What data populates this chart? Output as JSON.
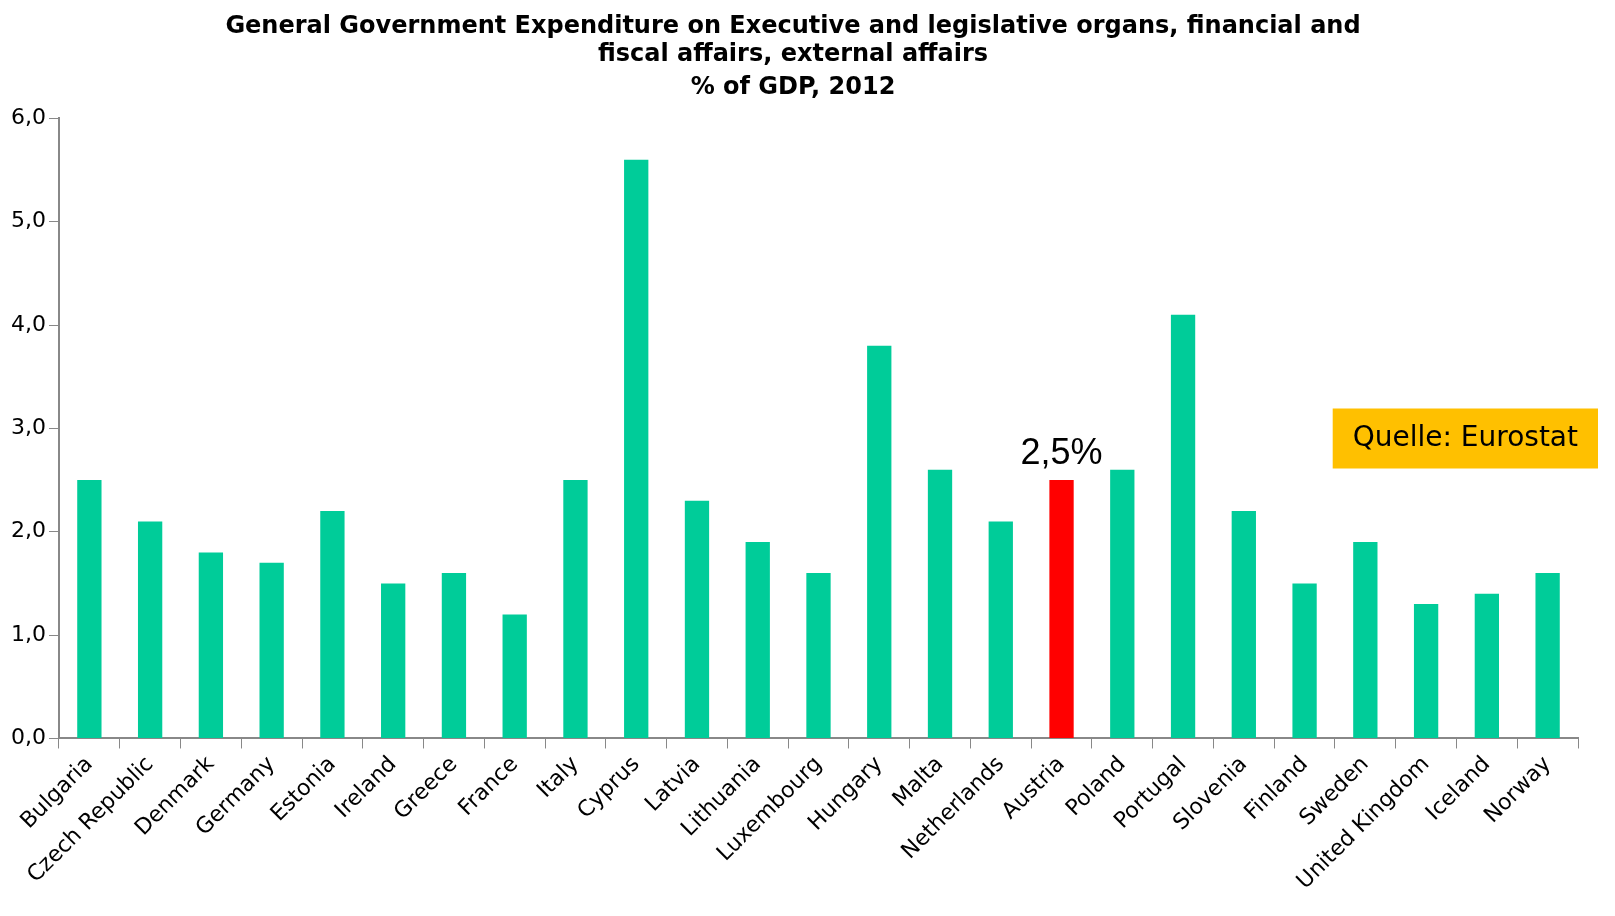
{
  "chart_data": {
    "type": "bar",
    "title": "General Government Expenditure on Executive and legislative organs, financial and fiscal affairs, external affairs",
    "subtitle": "% of GDP, 2012",
    "categories": [
      "Bulgaria",
      "Czech Republic",
      "Denmark",
      "Germany",
      "Estonia",
      "Ireland",
      "Greece",
      "France",
      "Italy",
      "Cyprus",
      "Latvia",
      "Lithuania",
      "Luxembourg",
      "Hungary",
      "Malta",
      "Netherlands",
      "Austria",
      "Poland",
      "Portugal",
      "Slovenia",
      "Finland",
      "Sweden",
      "United Kingdom",
      "Iceland",
      "Norway"
    ],
    "values": [
      2.5,
      2.1,
      1.8,
      1.7,
      2.2,
      1.5,
      1.6,
      1.2,
      2.5,
      5.6,
      2.3,
      1.9,
      1.6,
      3.8,
      2.6,
      2.1,
      2.5,
      2.6,
      4.1,
      2.2,
      1.5,
      1.9,
      1.3,
      1.4,
      1.6
    ],
    "colors": [
      "#00cc99",
      "#00cc99",
      "#00cc99",
      "#00cc99",
      "#00cc99",
      "#00cc99",
      "#00cc99",
      "#00cc99",
      "#00cc99",
      "#00cc99",
      "#00cc99",
      "#00cc99",
      "#00cc99",
      "#00cc99",
      "#00cc99",
      "#00cc99",
      "#ff0000",
      "#00cc99",
      "#00cc99",
      "#00cc99",
      "#00cc99",
      "#00cc99",
      "#00cc99",
      "#00cc99",
      "#00cc99"
    ],
    "ylim": [
      0,
      6
    ],
    "yticks": [
      {
        "value": 0,
        "label": "0,0"
      },
      {
        "value": 1,
        "label": "1,0"
      },
      {
        "value": 2,
        "label": "2,0"
      },
      {
        "value": 3,
        "label": "3,0"
      },
      {
        "value": 4,
        "label": "4,0"
      },
      {
        "value": 5,
        "label": "5,0"
      },
      {
        "value": 6,
        "label": "6,0"
      }
    ],
    "grid": false,
    "legend": false,
    "annotations": [
      {
        "text": "2,5%",
        "x": "Austria",
        "y": 2.5
      },
      "Quelle: Eurostat"
    ]
  }
}
